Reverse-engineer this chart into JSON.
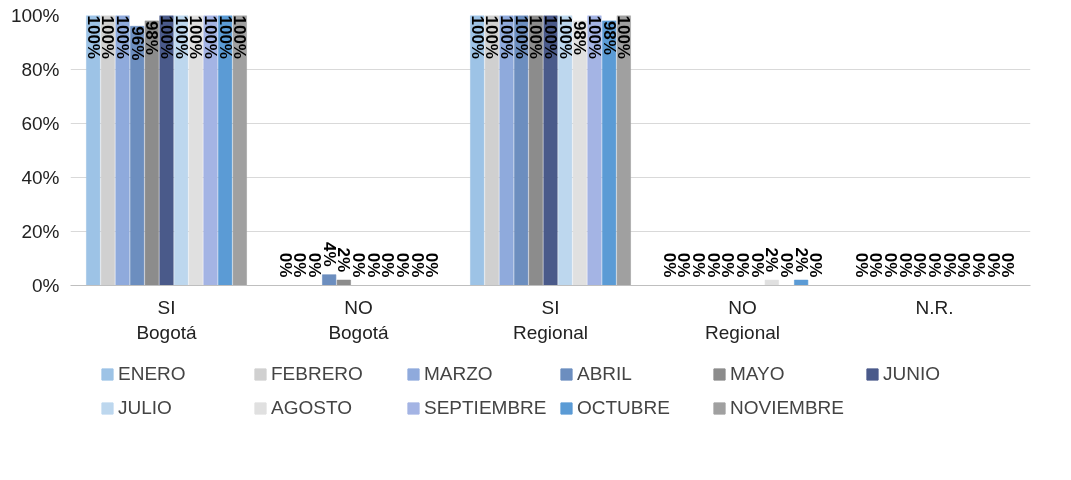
{
  "chart_data": {
    "type": "bar",
    "categories": [
      "SI\nBogotá",
      "NO\nBogotá",
      "SI\nRegional",
      "NO\nRegional",
      "N.R."
    ],
    "series": [
      {
        "name": "ENERO",
        "color": "#9dc3e6",
        "values": [
          100,
          0,
          100,
          0,
          0
        ],
        "value_labels": [
          "100%",
          "0%",
          "100%",
          "0%",
          "0%"
        ]
      },
      {
        "name": "FEBRERO",
        "color": "#d0d0d0",
        "values": [
          100,
          0,
          100,
          0,
          0
        ],
        "value_labels": [
          "100%",
          "0%",
          "100%",
          "0%",
          "0%"
        ]
      },
      {
        "name": "MARZO",
        "color": "#8faadc",
        "values": [
          100,
          0,
          100,
          0,
          0
        ],
        "value_labels": [
          "100%",
          "0%",
          "100%",
          "0%",
          "0%"
        ]
      },
      {
        "name": "ABRIL",
        "color": "#6c8ebf",
        "values": [
          96,
          4,
          100,
          0,
          0
        ],
        "value_labels": [
          "96%",
          "4%",
          "100%",
          "0%",
          "0%"
        ]
      },
      {
        "name": "MAYO",
        "color": "#8c8c8c",
        "values": [
          98,
          2,
          100,
          0,
          0
        ],
        "value_labels": [
          "98%",
          "2%",
          "100%",
          "0%",
          "0%"
        ]
      },
      {
        "name": "JUNIO",
        "color": "#4a5a8a",
        "values": [
          100,
          0,
          100,
          0,
          0
        ],
        "value_labels": [
          "100%",
          "0%",
          "100%",
          "0%",
          "0%"
        ]
      },
      {
        "name": "JULIO",
        "color": "#bdd7ee",
        "values": [
          100,
          0,
          100,
          0,
          0
        ],
        "value_labels": [
          "100%",
          "0%",
          "100%",
          "0%",
          "0%"
        ]
      },
      {
        "name": "AGOSTO",
        "color": "#e0e0e0",
        "values": [
          100,
          0,
          98,
          2,
          0
        ],
        "value_labels": [
          "100%",
          "0%",
          "98%",
          "2%",
          "0%"
        ]
      },
      {
        "name": "SEPTIEMBRE",
        "color": "#a4b4e4",
        "values": [
          100,
          0,
          100,
          0,
          0
        ],
        "value_labels": [
          "100%",
          "0%",
          "100%",
          "0%",
          "0%"
        ]
      },
      {
        "name": "OCTUBRE",
        "color": "#5b9bd5",
        "values": [
          100,
          0,
          98,
          2,
          0
        ],
        "value_labels": [
          "100%",
          "0%",
          "98%",
          "2%",
          "0%"
        ]
      },
      {
        "name": "NOVIEMBRE",
        "color": "#a0a0a0",
        "values": [
          100,
          0,
          100,
          0,
          0
        ],
        "value_labels": [
          "100%",
          "0%",
          "100%",
          "0%",
          "0%"
        ]
      }
    ],
    "ylim": [
      0,
      100
    ],
    "yticks": [
      {
        "value": 0,
        "label": "0%"
      },
      {
        "value": 20,
        "label": "20%"
      },
      {
        "value": 40,
        "label": "40%"
      },
      {
        "value": 60,
        "label": "60%"
      },
      {
        "value": 80,
        "label": "80%"
      },
      {
        "value": 100,
        "label": "100%"
      }
    ],
    "grid": "y",
    "legend": "bottom"
  }
}
